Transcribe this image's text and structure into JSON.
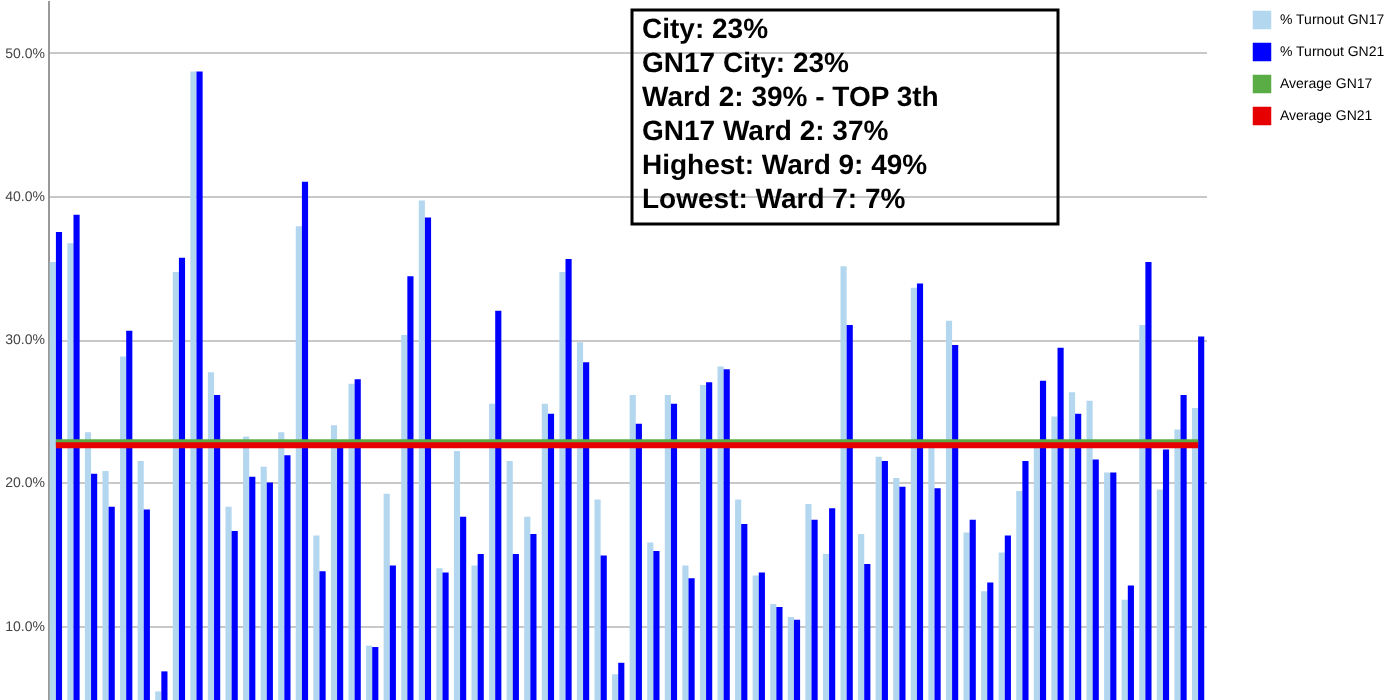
{
  "chart_data": {
    "type": "bar",
    "categories": [
      null,
      null,
      null,
      null,
      null,
      null,
      null,
      null,
      null,
      null,
      null,
      null,
      null,
      null,
      null,
      null,
      null,
      null,
      null,
      null,
      null,
      null,
      null,
      null,
      null,
      null,
      null,
      null,
      null,
      null,
      null,
      null,
      null,
      null,
      null,
      null,
      null,
      null,
      null,
      null,
      null,
      null,
      null,
      null,
      null,
      null,
      null,
      null,
      null,
      null,
      null,
      null,
      null,
      null,
      null,
      null,
      null,
      null,
      null,
      null,
      null,
      null,
      null,
      null,
      null,
      null
    ],
    "series": [
      {
        "name": "% Turnout GN17",
        "color": "#b4d7f0",
        "values": [
          35.4,
          36.7,
          23.5,
          20.8,
          28.8,
          21.5,
          5.4,
          34.7,
          48.7,
          27.7,
          18.3,
          23.2,
          21.1,
          23.5,
          37.9,
          16.3,
          24.0,
          26.9,
          8.6,
          19.2,
          30.3,
          39.7,
          14.0,
          22.2,
          14.2,
          25.5,
          21.5,
          17.6,
          25.5,
          34.7,
          29.8,
          18.8,
          6.6,
          26.1,
          15.8,
          26.1,
          14.2,
          26.8,
          28.1,
          18.8,
          13.5,
          11.5,
          10.6,
          18.5,
          15.0,
          35.1,
          16.4,
          21.8,
          20.3,
          33.6,
          22.5,
          31.3,
          16.5,
          12.4,
          15.1,
          19.4,
          22.4,
          24.6,
          26.3,
          25.7,
          20.7,
          11.8,
          31.0,
          19.5,
          23.7,
          25.2
        ]
      },
      {
        "name": "% Turnout GN21",
        "color": "#0000ff",
        "values": [
          37.5,
          38.7,
          20.6,
          18.3,
          30.6,
          18.1,
          6.8,
          35.7,
          48.7,
          26.1,
          16.6,
          20.4,
          20.0,
          21.9,
          41.0,
          13.8,
          22.7,
          27.2,
          8.5,
          14.2,
          34.4,
          38.5,
          13.7,
          17.6,
          15.0,
          32.0,
          15.0,
          16.4,
          24.8,
          35.6,
          28.4,
          14.9,
          7.4,
          24.1,
          15.2,
          25.5,
          13.3,
          27.0,
          27.9,
          17.1,
          13.7,
          11.3,
          10.4,
          17.4,
          18.2,
          31.0,
          14.3,
          21.5,
          19.7,
          33.9,
          19.6,
          29.6,
          17.4,
          13.0,
          16.3,
          21.5,
          27.1,
          29.4,
          24.8,
          21.6,
          20.7,
          12.8,
          35.4,
          22.3,
          26.1,
          30.2
        ]
      },
      {
        "name": "Average GN17",
        "type": "line",
        "color": "#5aac44",
        "values": [
          22.8,
          22.8,
          22.8,
          22.8,
          22.8,
          22.8,
          22.8,
          22.8,
          22.8,
          22.8,
          22.8,
          22.8,
          22.8,
          22.8,
          22.8,
          22.8,
          22.8,
          22.8,
          22.8,
          22.8,
          22.8,
          22.8,
          22.8,
          22.8,
          22.8,
          22.8,
          22.8,
          22.8,
          22.8,
          22.8,
          22.8,
          22.8,
          22.8,
          22.8,
          22.8,
          22.8,
          22.8,
          22.8,
          22.8,
          22.8,
          22.8,
          22.8,
          22.8,
          22.8,
          22.8,
          22.8,
          22.8,
          22.8,
          22.8,
          22.8,
          22.8,
          22.8,
          22.8,
          22.8,
          22.8,
          22.8,
          22.8,
          22.8,
          22.8,
          22.8,
          22.8,
          22.8,
          22.8,
          22.8,
          22.8,
          22.8
        ]
      },
      {
        "name": "Average GN21",
        "type": "line",
        "color": "#e60000",
        "values": [
          22.6,
          22.6,
          22.6,
          22.6,
          22.6,
          22.6,
          22.6,
          22.6,
          22.6,
          22.6,
          22.6,
          22.6,
          22.6,
          22.6,
          22.6,
          22.6,
          22.6,
          22.6,
          22.6,
          22.6,
          22.6,
          22.6,
          22.6,
          22.6,
          22.6,
          22.6,
          22.6,
          22.6,
          22.6,
          22.6,
          22.6,
          22.6,
          22.6,
          22.6,
          22.6,
          22.6,
          22.6,
          22.6,
          22.6,
          22.6,
          22.6,
          22.6,
          22.6,
          22.6,
          22.6,
          22.6,
          22.6,
          22.6,
          22.6,
          22.6,
          22.6,
          22.6,
          22.6,
          22.6,
          22.6,
          22.6,
          22.6,
          22.6,
          22.6,
          22.6,
          22.6,
          22.6,
          22.6,
          22.6,
          22.6,
          22.6
        ]
      }
    ],
    "ylim": [
      4.8,
      53.7
    ],
    "yticks": [
      {
        "value": 10,
        "label": "10.0%"
      },
      {
        "value": 20,
        "label": "20.0%"
      },
      {
        "value": 30,
        "label": "30.0%"
      },
      {
        "value": 40,
        "label": "40.0%"
      },
      {
        "value": 50,
        "label": "50.0%"
      }
    ],
    "grid": "y",
    "legend": "right",
    "tick_labels": "y",
    "annotations": [
      "City:  23%",
      "GN17 City:  23%",
      "Ward 2:  39% - TOP 3th",
      "GN17 Ward 2:  37%",
      "Highest: Ward 9:  49%",
      "Lowest:  Ward  7:  7%"
    ]
  }
}
